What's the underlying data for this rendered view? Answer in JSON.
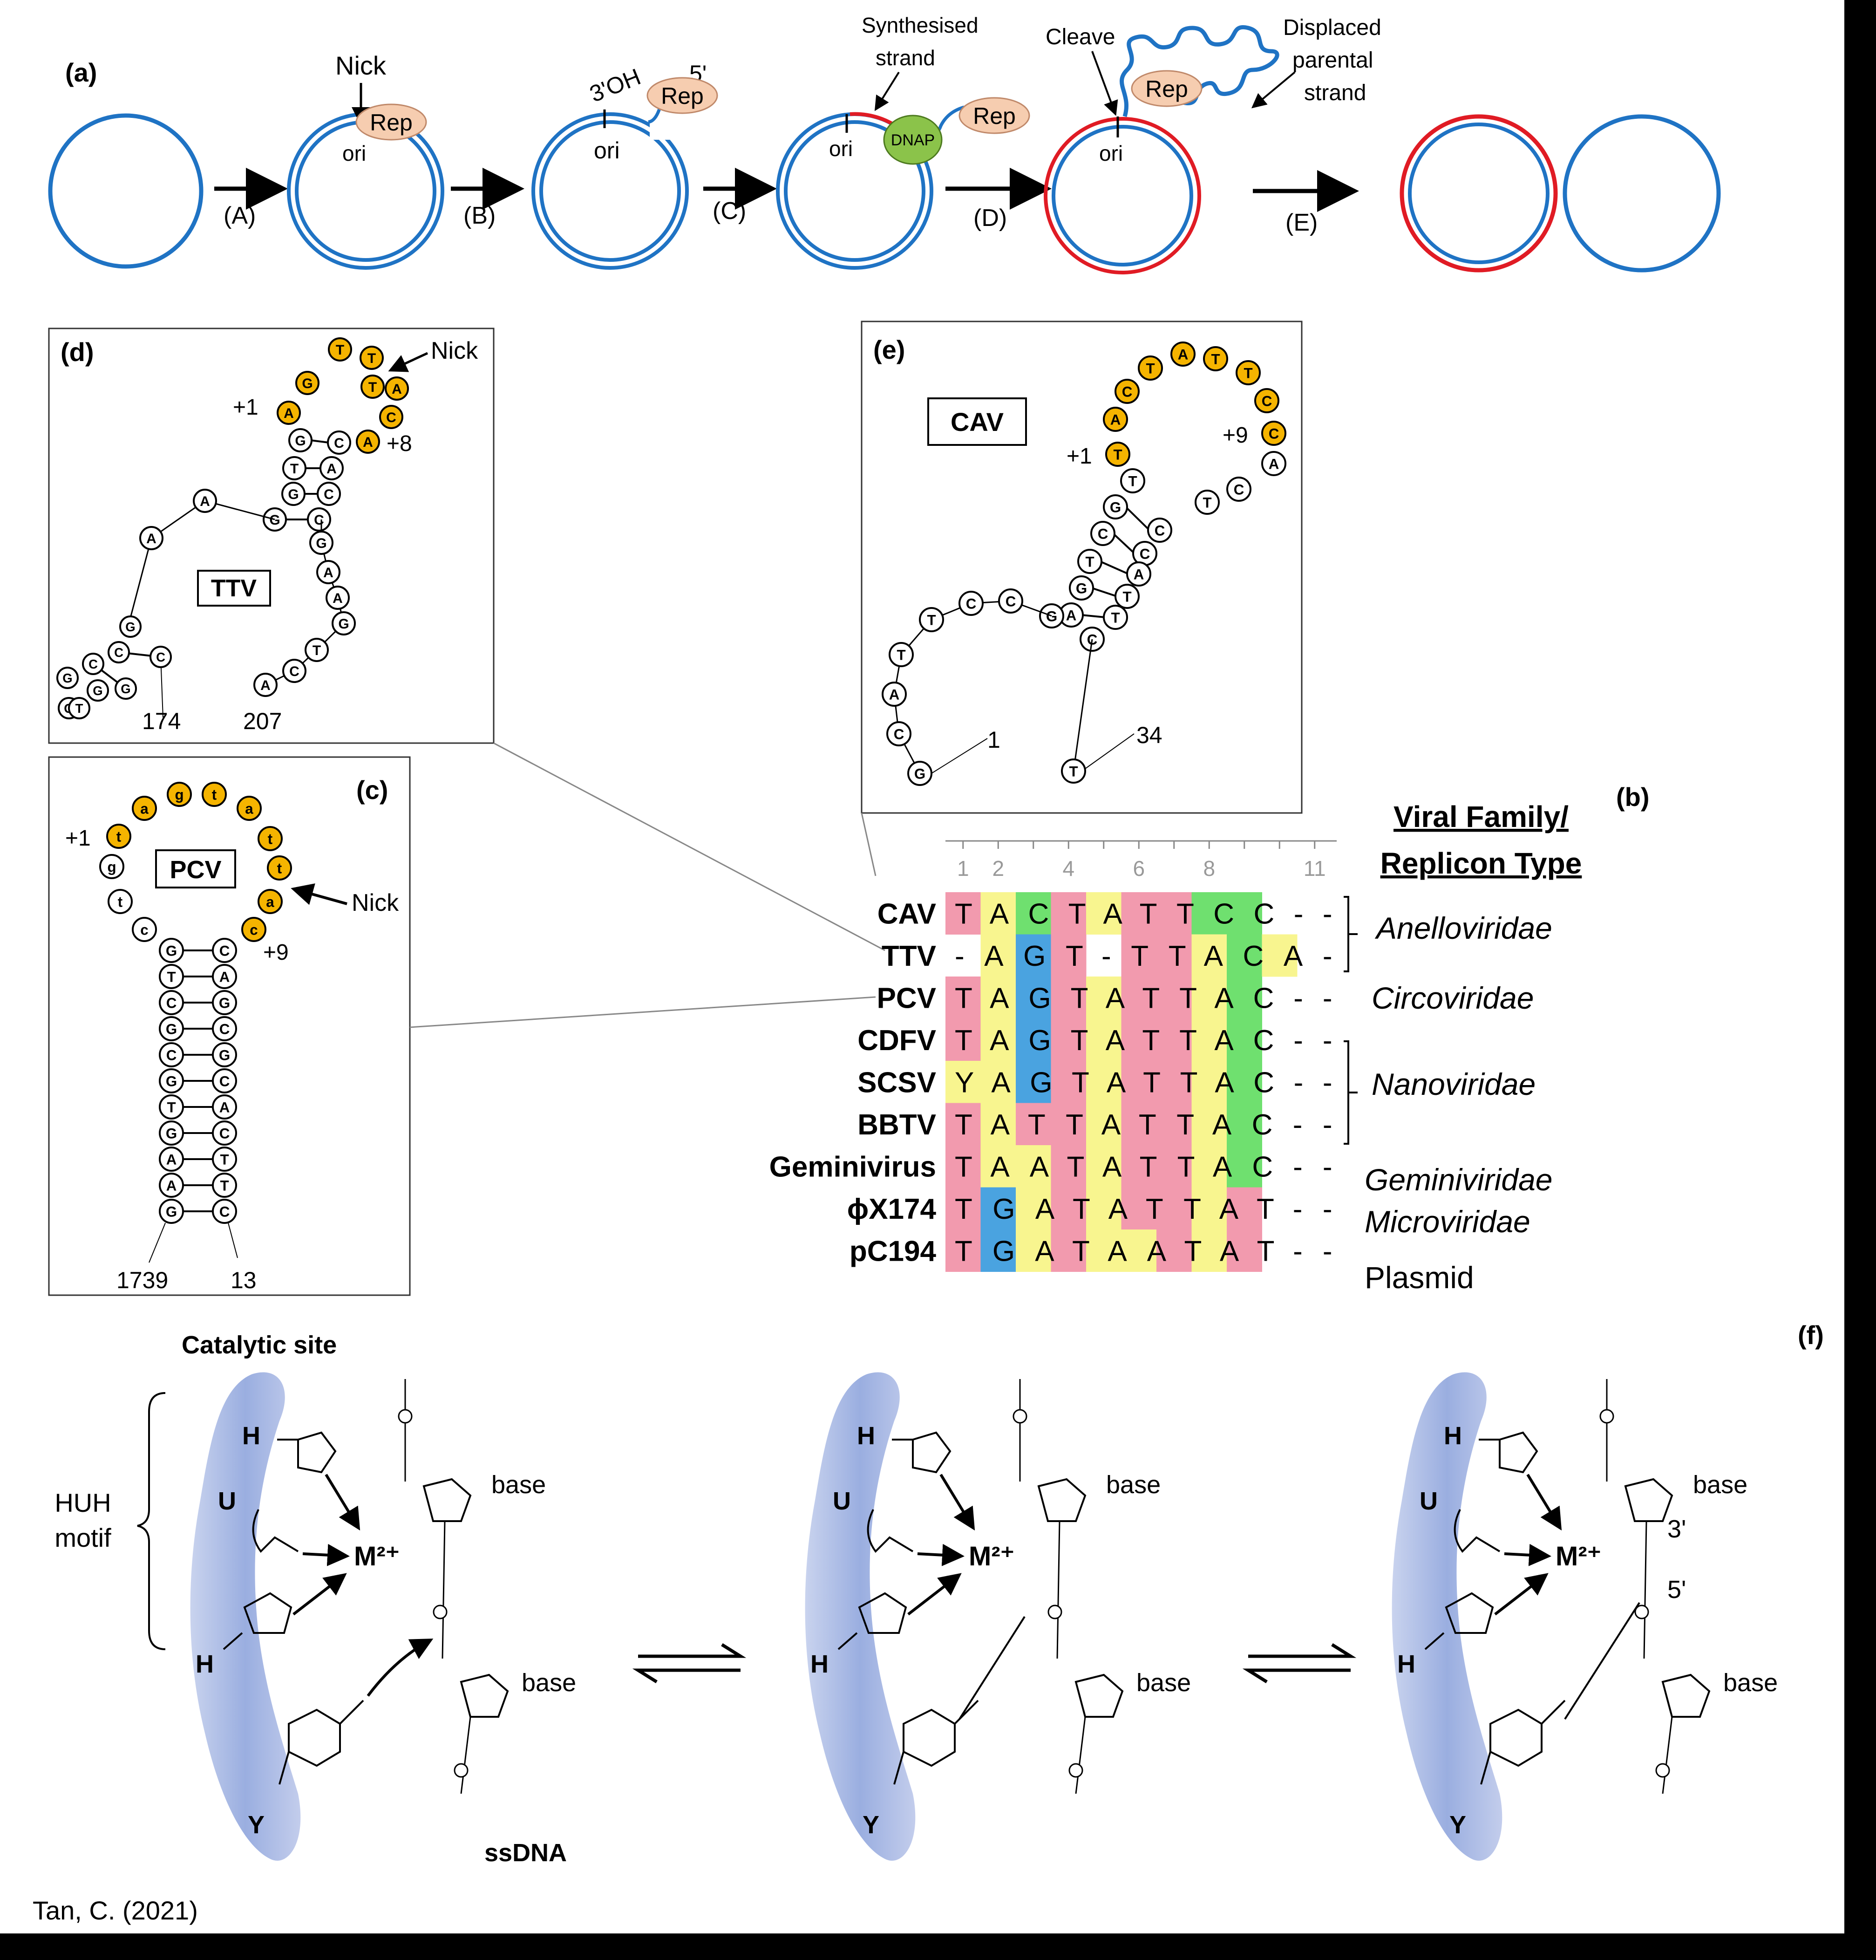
{
  "panel_a": {
    "label": "(a)",
    "steps": [
      "(A)",
      "(B)",
      "(C)",
      "(D)",
      "(E)"
    ],
    "nick": "Nick",
    "rep": "Rep",
    "ori": "ori",
    "oh3": "3'OH",
    "p5": "5'",
    "dnap": "DNAP",
    "synth": [
      "Synthesised",
      "strand"
    ],
    "cleave": "Cleave",
    "displaced": [
      "Displaced",
      "parental",
      "strand"
    ]
  },
  "panel_d": {
    "label": "(d)",
    "name": "TTV",
    "nick": "Nick",
    "plus1": "+1",
    "plus8": "+8",
    "n174": "174",
    "n207": "207",
    "loop": [
      "A",
      "G",
      "T",
      "T",
      "T",
      "A",
      "C",
      "A"
    ],
    "stem": [
      "G",
      "C",
      "T",
      "A",
      "G",
      "C",
      "G",
      "C"
    ],
    "tail": [
      "A",
      "A",
      "G",
      "A",
      "A",
      "G",
      "T",
      "C",
      "A"
    ],
    "small": [
      "G",
      "C",
      "C",
      "G",
      "G",
      "T",
      "G",
      "G",
      "C"
    ]
  },
  "panel_e": {
    "label": "(e)",
    "name": "CAV",
    "plus1": "+1",
    "plus9": "+9",
    "n1": "1",
    "n34": "34",
    "loop": [
      "T",
      "A",
      "C",
      "T",
      "A",
      "T",
      "T",
      "C",
      "C"
    ],
    "stem_l": [
      "T",
      "G",
      "C",
      "T",
      "G",
      "A",
      "G",
      "C"
    ],
    "stem_r": [
      "A",
      "C",
      "T",
      "C",
      "C",
      "A",
      "T",
      "T",
      "C"
    ],
    "tail": [
      "C",
      "C",
      "T",
      "T",
      "A",
      "C",
      "G"
    ],
    "t34": "T"
  },
  "panel_c": {
    "label": "(c)",
    "name": "PCV",
    "nick": "Nick",
    "plus1": "+1",
    "plus9": "+9",
    "n1739": "1739",
    "n13": "13",
    "loop": [
      "t",
      "a",
      "g",
      "t",
      "a",
      "t",
      "t",
      "a",
      "c"
    ],
    "loop_white": [
      "g",
      "t",
      "c"
    ],
    "stem_l": [
      "G",
      "T",
      "C",
      "G",
      "C",
      "G",
      "T",
      "G",
      "A",
      "A",
      "G"
    ],
    "stem_r": [
      "C",
      "A",
      "G",
      "C",
      "G",
      "C",
      "A",
      "C",
      "T",
      "T",
      "C"
    ]
  },
  "panel_b": {
    "label": "(b)",
    "header": [
      "Viral Family/",
      "Replicon Type"
    ],
    "positions": [
      "1",
      "2",
      "4",
      "6",
      "8",
      "11"
    ],
    "rows": [
      {
        "name": "CAV",
        "seq": "TACTATTCC--"
      },
      {
        "name": "TTV",
        "seq": "-AGT-TTACA-"
      },
      {
        "name": "PCV",
        "seq": "TAGTATTAC--"
      },
      {
        "name": "CDFV",
        "seq": "TAGTATTAC--"
      },
      {
        "name": "SCSV",
        "seq": "YAGTATTAC--"
      },
      {
        "name": "BBTV",
        "seq": "TATTATTAC--"
      },
      {
        "name": "Geminivirus",
        "seq": "TAATATTAC--"
      },
      {
        "name": "ϕX174",
        "seq": "TGATATTAT--"
      },
      {
        "name": "pC194",
        "seq": "TGATAATAT--"
      }
    ],
    "families": [
      "Anelloviridae",
      "Circoviridae",
      "Nanoviridae",
      "Geminiviridae",
      "Microviridae",
      "Plasmid"
    ],
    "colors": {
      "T": "#f29aae",
      "A": "#f8f58f",
      "C": "#6fe06f",
      "G": "#4aa3e0",
      "Y": "#f8f58f"
    }
  },
  "panel_f": {
    "label": "(f)",
    "catalytic": "Catalytic site",
    "huh": [
      "HUH",
      "motif"
    ],
    "residues": [
      "H",
      "U",
      "H",
      "Y"
    ],
    "metal": "M²⁺",
    "base": "base",
    "ssdna": "ssDNA",
    "three": "3'",
    "five": "5'"
  },
  "credit": "Tan, C. (2021)"
}
